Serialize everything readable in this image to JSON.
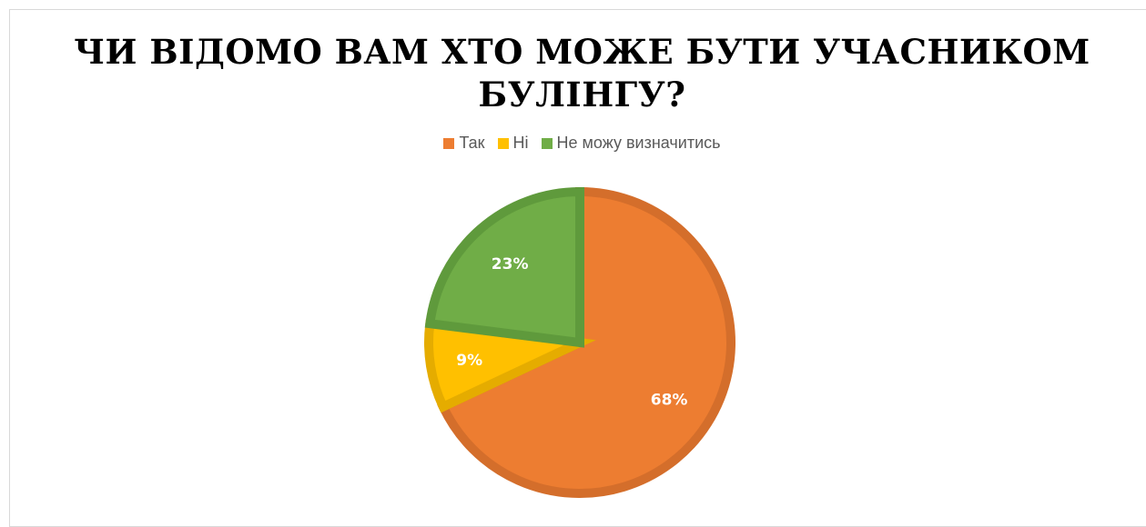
{
  "chart_data": {
    "type": "pie",
    "title": "ЧИ ВІДОМО ВАМ ХТО МОЖЕ БУТИ УЧАСНИКОМ БУЛІНГУ?",
    "title_lines": [
      "ЧИ ВІДОМО ВАМ ХТО МОЖЕ БУТИ УЧАСНИКОМ",
      "БУЛІНГУ?"
    ],
    "legend_position": "top",
    "categories": [
      "Так",
      "Ні",
      "Не можу визначитись"
    ],
    "values": [
      68,
      9,
      23
    ],
    "labels": [
      "68%",
      "9%",
      "23%"
    ],
    "colors": [
      "#ed7d31",
      "#ffc000",
      "#70ad47"
    ],
    "border_colors": [
      "#d46e2b",
      "#e5ac00",
      "#5f9a3c"
    ]
  }
}
